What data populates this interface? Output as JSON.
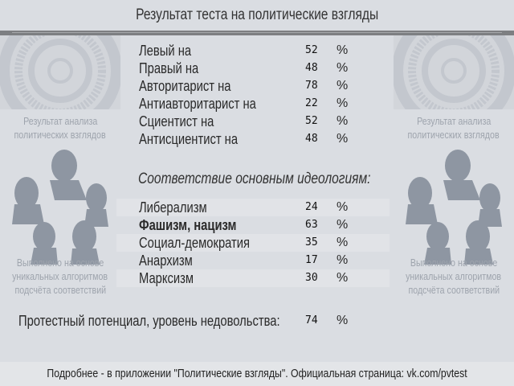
{
  "title": "Результат теста на политические взгляды",
  "side": {
    "caption_top": [
      "Результат анализа",
      "политических взглядов"
    ],
    "caption_bottom": [
      "Выполнено на основе",
      "уникальных алгоритмов",
      "подсчёта соответствий"
    ]
  },
  "axes": [
    {
      "label": "Левый на",
      "value": "52",
      "unit": "%"
    },
    {
      "label": "Правый на",
      "value": "48",
      "unit": "%"
    },
    {
      "label": "Авторитарист на",
      "value": "78",
      "unit": "%"
    },
    {
      "label": "Антиавторитарист на",
      "value": "22",
      "unit": "%"
    },
    {
      "label": "Сциентист на",
      "value": "52",
      "unit": "%"
    },
    {
      "label": "Антисциентист на",
      "value": "48",
      "unit": "%"
    }
  ],
  "ideology_heading": "Соответствие основным идеологиям:",
  "ideologies": [
    {
      "label": "Либерализм",
      "value": "24",
      "unit": "%"
    },
    {
      "label": "Фашизм, нацизм",
      "value": "63",
      "unit": "%"
    },
    {
      "label": "Социал-демократия",
      "value": "35",
      "unit": "%"
    },
    {
      "label": "Анархизм",
      "value": "17",
      "unit": "%"
    },
    {
      "label": "Марксизм",
      "value": "30",
      "unit": "%"
    }
  ],
  "protest": {
    "label": "Протестный потенциал, уровень недовольства:",
    "value": "74",
    "unit": "%"
  },
  "footer": "Подробнее - в приложении \"Политические взгляды\". Официальная страница: vk.com/pvtest",
  "colors": {
    "background": "#dadde2",
    "bar": "#7d7f82",
    "decor": "#8e96a2"
  }
}
